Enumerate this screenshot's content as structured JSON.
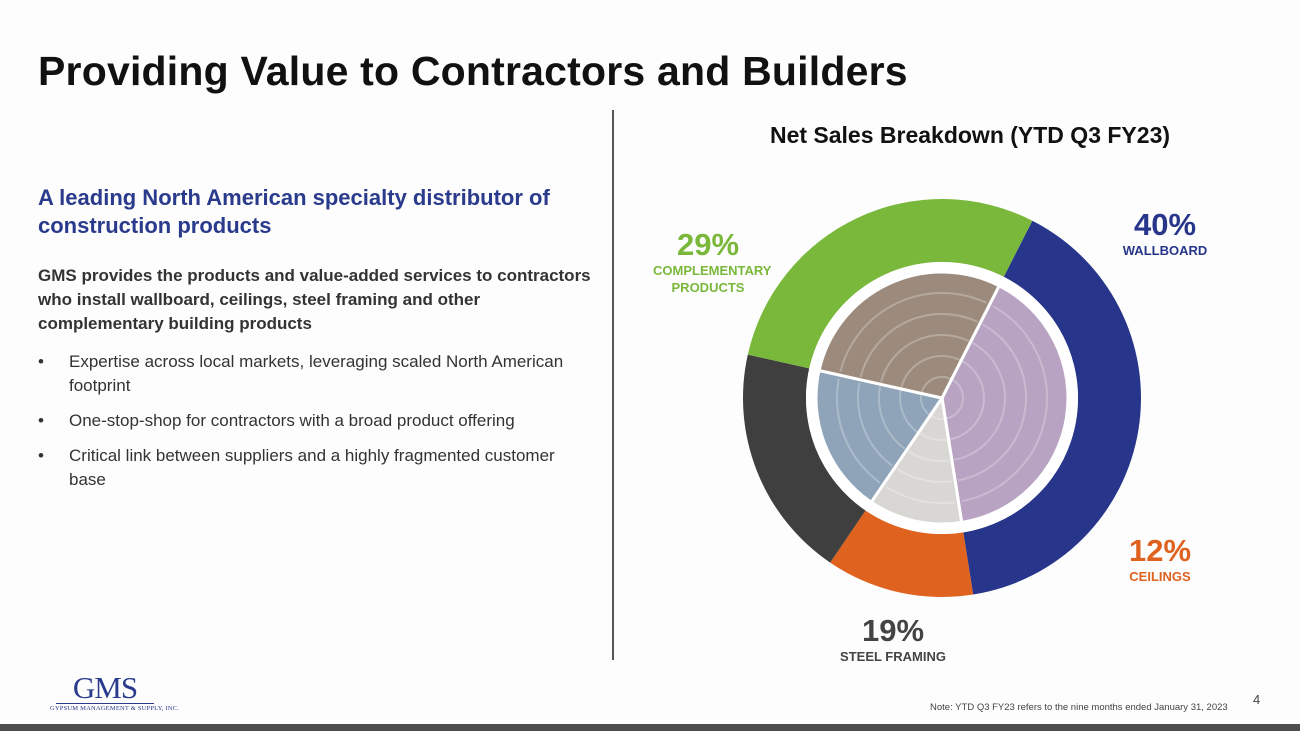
{
  "title": "Providing Value to Contractors and Builders",
  "left": {
    "subhead": "A leading North American specialty distributor of construction products",
    "intro": "GMS provides the products and value-added services to contractors who install wallboard, ceilings, steel framing and other complementary building products",
    "bullet_glyph": "•",
    "bullets": [
      "Expertise across local markets, leveraging scaled North American footprint",
      "One-stop-shop for contractors with a broad product offering",
      "Critical link between suppliers and a highly fragmented customer base"
    ]
  },
  "chart_data": {
    "type": "pie",
    "variant": "donut",
    "title": "Net Sales Breakdown (YTD Q3 FY23)",
    "unit": "%",
    "slices": [
      {
        "label": "WALLBOARD",
        "value": 40,
        "display": "40%",
        "color": "#27368a"
      },
      {
        "label": "CEILINGS",
        "value": 12,
        "display": "12%",
        "color": "#e0621f"
      },
      {
        "label": "STEEL FRAMING",
        "value": 19,
        "display": "19%",
        "color": "#3f3f3f"
      },
      {
        "label": "COMPLEMENTARY PRODUCTS",
        "value": 29,
        "display": "29%",
        "color": "#7ab83c"
      }
    ],
    "label_colors": {
      "WALLBOARD": "#27368a",
      "CEILINGS": "#e0621f",
      "STEEL FRAMING": "#444444",
      "COMPLEMENTARY PRODUCTS": "#7ab83c"
    }
  },
  "footer": {
    "note": "Note:  YTD Q3 FY23 refers to the nine months ended January 31, 2023",
    "page_number": "4",
    "logo_text": "GMS",
    "logo_subtext": "GYPSUM MANAGEMENT & SUPPLY, INC.",
    "logo_color": "#2a3a8c"
  }
}
